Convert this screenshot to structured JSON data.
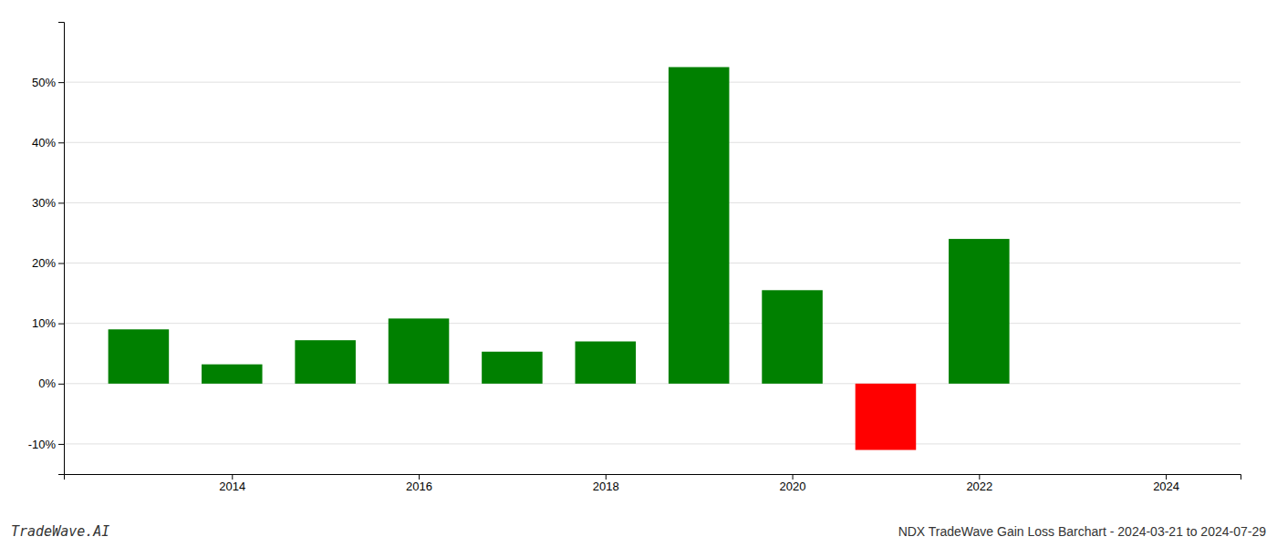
{
  "chart_data": {
    "type": "bar",
    "title": "NDX TradeWave Gain Loss Barchart - 2024-03-21 to 2024-07-29",
    "annotations": [
      "TradeWave.AI"
    ],
    "x": [
      2013,
      2014,
      2015,
      2016,
      2017,
      2018,
      2019,
      2020,
      2021,
      2022
    ],
    "values": [
      9.0,
      3.2,
      7.2,
      10.8,
      5.3,
      7.0,
      52.5,
      15.5,
      -11.0,
      24.0
    ],
    "colors": [
      "#008000",
      "#008000",
      "#008000",
      "#008000",
      "#008000",
      "#008000",
      "#008000",
      "#008000",
      "#ff0000",
      "#008000"
    ],
    "xlim": [
      2012.2,
      2024.8
    ],
    "xticks": [
      2014,
      2016,
      2018,
      2020,
      2022,
      2024
    ],
    "ylim": [
      -15,
      60
    ],
    "yticks": [
      {
        "value": -10,
        "label": "-10%"
      },
      {
        "value": 0,
        "label": "0%"
      },
      {
        "value": 10,
        "label": "10%"
      },
      {
        "value": 20,
        "label": "20%"
      },
      {
        "value": 30,
        "label": "30%"
      },
      {
        "value": 40,
        "label": "40%"
      },
      {
        "value": 50,
        "label": "50%"
      }
    ],
    "grid": true
  }
}
